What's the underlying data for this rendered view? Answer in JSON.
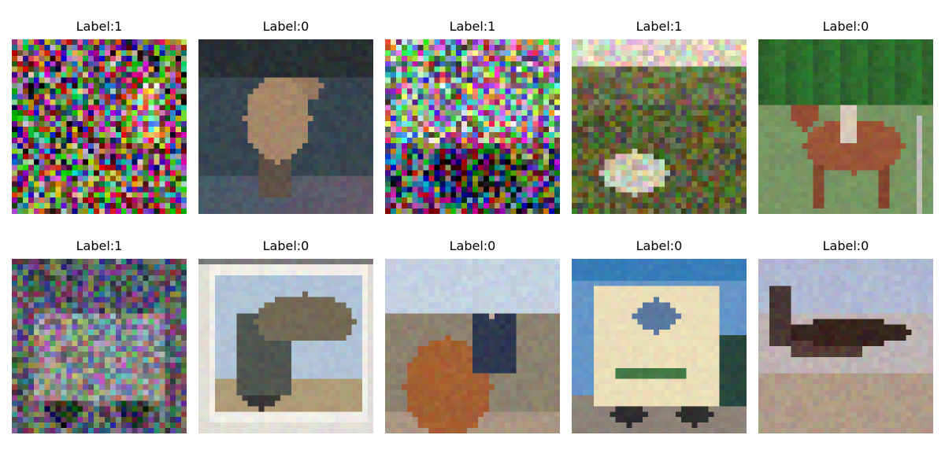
{
  "grid": {
    "rows": [
      [
        {
          "label": "Label:1",
          "icon": "noisy-image-1",
          "subject": "noise mostly colored static"
        },
        {
          "label": "Label:0",
          "icon": "deer-photo",
          "subject": "deer"
        },
        {
          "label": "Label:1",
          "icon": "noisy-image-2",
          "subject": "noise mostly colored static"
        },
        {
          "label": "Label:1",
          "icon": "noisy-landscape",
          "subject": "noisy scene"
        },
        {
          "label": "Label:0",
          "icon": "horse-rider-photo",
          "subject": "horse with rider"
        }
      ],
      [
        {
          "label": "Label:1",
          "icon": "noisy-truck",
          "subject": "noisy truck"
        },
        {
          "label": "Label:0",
          "icon": "dump-truck-photo",
          "subject": "framed dump truck"
        },
        {
          "label": "Label:0",
          "icon": "rider-horse-photo",
          "subject": "man on horse"
        },
        {
          "label": "Label:0",
          "icon": "delivery-truck-photo",
          "subject": "box truck"
        },
        {
          "label": "Label:0",
          "icon": "airplane-photo",
          "subject": "airplane"
        }
      ]
    ]
  }
}
